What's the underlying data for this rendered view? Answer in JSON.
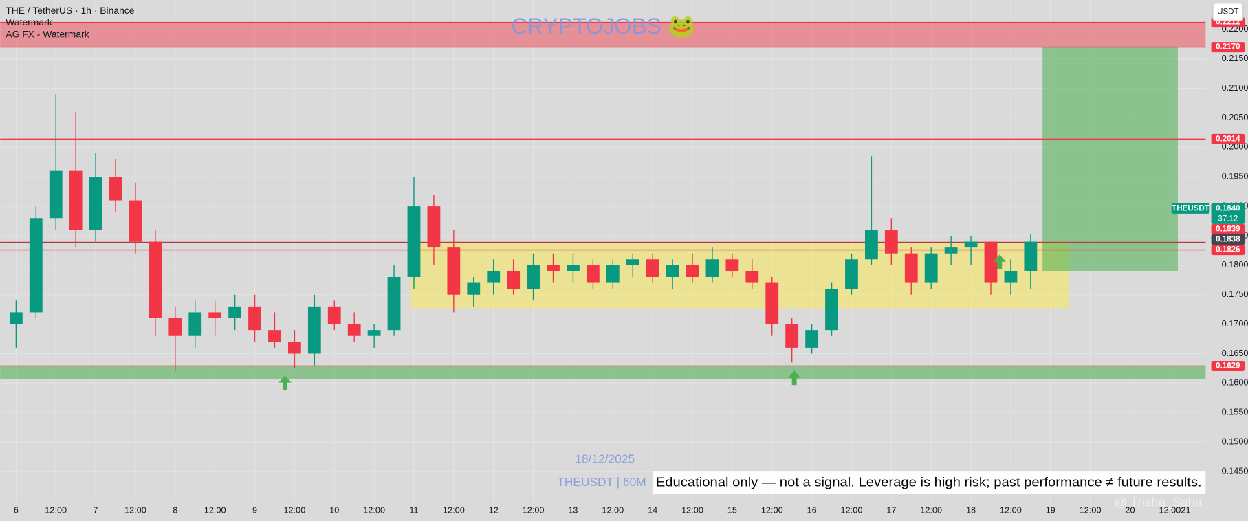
{
  "chart_data": {
    "type": "candlestick",
    "title": "THE / TetherUS · 1h · Binance",
    "indicators": [
      "Watermark",
      "AG FX - Watermark"
    ],
    "watermark": "CRYPTOJOBS 🐸",
    "currency": "USDT",
    "annotations": {
      "date": "18/12/2025",
      "symbol": "THEUSDT | 60M",
      "disclaimer": "Educational only — not a signal. Leverage is high risk; past performance ≠ future results."
    },
    "credit": "@ Trisha_Saha",
    "up_color": "#089981",
    "down_color": "#f23645",
    "x": [
      0,
      6,
      12,
      18,
      24,
      30,
      36,
      42,
      48,
      54,
      60,
      66,
      72,
      78,
      84,
      90,
      96,
      102,
      108,
      114,
      120,
      126,
      132,
      138,
      144,
      150,
      156,
      162,
      168,
      174,
      180,
      186,
      192,
      198,
      204,
      210,
      216,
      222,
      228,
      234,
      240,
      246,
      252,
      258,
      264,
      270,
      276,
      282,
      288,
      294,
      300,
      306
    ],
    "open": [
      0.17,
      0.172,
      0.188,
      0.196,
      0.186,
      0.195,
      0.191,
      0.184,
      0.171,
      0.168,
      0.172,
      0.171,
      0.173,
      0.169,
      0.167,
      0.165,
      0.173,
      0.17,
      0.168,
      0.169,
      0.178,
      0.19,
      0.183,
      0.175,
      0.177,
      0.179,
      0.176,
      0.18,
      0.179,
      0.18,
      0.177,
      0.18,
      0.181,
      0.178,
      0.18,
      0.178,
      0.181,
      0.179,
      0.177,
      0.17,
      0.166,
      0.169,
      0.176,
      0.181,
      0.186,
      0.182,
      0.177,
      0.182,
      0.183,
      0.184,
      0.177,
      0.179
    ],
    "high": [
      0.174,
      0.19,
      0.209,
      0.206,
      0.199,
      0.198,
      0.194,
      0.186,
      0.173,
      0.174,
      0.174,
      0.175,
      0.175,
      0.172,
      0.169,
      0.175,
      0.174,
      0.172,
      0.17,
      0.18,
      0.195,
      0.192,
      0.186,
      0.178,
      0.181,
      0.181,
      0.182,
      0.182,
      0.182,
      0.181,
      0.181,
      0.182,
      0.182,
      0.181,
      0.182,
      0.183,
      0.182,
      0.181,
      0.178,
      0.171,
      0.17,
      0.177,
      0.182,
      0.1985,
      0.188,
      0.183,
      0.183,
      0.185,
      0.185,
      0.184,
      0.181,
      0.1852
    ],
    "low": [
      0.166,
      0.171,
      0.186,
      0.183,
      0.184,
      0.189,
      0.182,
      0.168,
      0.162,
      0.166,
      0.168,
      0.169,
      0.167,
      0.166,
      0.1625,
      0.163,
      0.169,
      0.167,
      0.166,
      0.168,
      0.176,
      0.18,
      0.172,
      0.173,
      0.175,
      0.175,
      0.174,
      0.177,
      0.177,
      0.176,
      0.176,
      0.178,
      0.177,
      0.176,
      0.177,
      0.177,
      0.178,
      0.176,
      0.168,
      0.1635,
      0.165,
      0.168,
      0.175,
      0.18,
      0.18,
      0.175,
      0.176,
      0.18,
      0.18,
      0.175,
      0.175,
      0.176
    ],
    "close": [
      0.172,
      0.188,
      0.196,
      0.186,
      0.195,
      0.191,
      0.184,
      0.171,
      0.168,
      0.172,
      0.171,
      0.173,
      0.169,
      0.167,
      0.165,
      0.173,
      0.17,
      0.168,
      0.169,
      0.178,
      0.19,
      0.183,
      0.175,
      0.177,
      0.179,
      0.176,
      0.18,
      0.179,
      0.18,
      0.177,
      0.18,
      0.181,
      0.178,
      0.18,
      0.178,
      0.181,
      0.179,
      0.177,
      0.17,
      0.166,
      0.169,
      0.176,
      0.181,
      0.186,
      0.182,
      0.177,
      0.182,
      0.183,
      0.184,
      0.177,
      0.179,
      0.184
    ],
    "xlim": [
      -4.8,
      358.8
    ],
    "xticks": [
      {
        "value": 0,
        "label": "6"
      },
      {
        "value": 12,
        "label": "12:00"
      },
      {
        "value": 24,
        "label": "7"
      },
      {
        "value": 36,
        "label": "12:00"
      },
      {
        "value": 48,
        "label": "8"
      },
      {
        "value": 60,
        "label": "12:00"
      },
      {
        "value": 72,
        "label": "9"
      },
      {
        "value": 84,
        "label": "12:00"
      },
      {
        "value": 96,
        "label": "10"
      },
      {
        "value": 108,
        "label": "12:00"
      },
      {
        "value": 120,
        "label": "11"
      },
      {
        "value": 132,
        "label": "12:00"
      },
      {
        "value": 144,
        "label": "12"
      },
      {
        "value": 156,
        "label": "12:00"
      },
      {
        "value": 168,
        "label": "13"
      },
      {
        "value": 180,
        "label": "12:00"
      },
      {
        "value": 192,
        "label": "14"
      },
      {
        "value": 204,
        "label": "12:00"
      },
      {
        "value": 216,
        "label": "15"
      },
      {
        "value": 228,
        "label": "12:00"
      },
      {
        "value": 240,
        "label": "16"
      },
      {
        "value": 252,
        "label": "12:00"
      },
      {
        "value": 264,
        "label": "17"
      },
      {
        "value": 276,
        "label": "12:00"
      },
      {
        "value": 288,
        "label": "18"
      },
      {
        "value": 300,
        "label": "12:00"
      },
      {
        "value": 312,
        "label": "19"
      },
      {
        "value": 324,
        "label": "12:00"
      },
      {
        "value": 336,
        "label": "20"
      },
      {
        "value": 348,
        "label": "12:00"
      },
      {
        "value": 360,
        "label": "21"
      }
    ],
    "ylim": [
      0.1397,
      0.225
    ],
    "yticks": [
      {
        "value": 0.145,
        "label": "0.1450"
      },
      {
        "value": 0.15,
        "label": "0.1500"
      },
      {
        "value": 0.155,
        "label": "0.1550"
      },
      {
        "value": 0.16,
        "label": "0.1600"
      },
      {
        "value": 0.165,
        "label": "0.1650"
      },
      {
        "value": 0.17,
        "label": "0.1700"
      },
      {
        "value": 0.175,
        "label": "0.1750"
      },
      {
        "value": 0.18,
        "label": "0.1800"
      },
      {
        "value": 0.185,
        "label": "0.1850"
      },
      {
        "value": 0.19,
        "label": "0.1900"
      },
      {
        "value": 0.195,
        "label": "0.1950"
      },
      {
        "value": 0.2,
        "label": "0.2000"
      },
      {
        "value": 0.205,
        "label": "0.2050"
      },
      {
        "value": 0.21,
        "label": "0.2100"
      },
      {
        "value": 0.215,
        "label": "0.2150"
      },
      {
        "value": 0.22,
        "label": "0.2200"
      }
    ],
    "grid": true,
    "zones": [
      {
        "y": [
          0.217,
          0.2212
        ],
        "color": "rgba(242,54,69,0.45)"
      },
      {
        "y": [
          0.1607,
          0.1629
        ],
        "color": "rgba(76,175,80,0.55)"
      },
      {
        "x": [
          118.8,
          317.5
        ],
        "y": [
          0.1727,
          0.1839
        ],
        "color": "rgba(255,235,59,0.45)"
      },
      {
        "x": [
          309.6,
          350.4
        ],
        "y": [
          0.179,
          0.217
        ],
        "color": "rgba(76,175,80,0.55)"
      }
    ],
    "levels": [
      {
        "value": 0.2212,
        "label": "0.2212",
        "color": "#f23645"
      },
      {
        "value": 0.217,
        "label": "0.2170",
        "color": "#f23645"
      },
      {
        "value": 0.2014,
        "label": "0.2014",
        "color": "#f23645"
      },
      {
        "value": 0.1839,
        "label": "0.1839",
        "color": "#f23645"
      },
      {
        "value": 0.1838,
        "label": "0.1838",
        "color": "#434651"
      },
      {
        "value": 0.1826,
        "label": "0.1826",
        "color": "#f23645"
      },
      {
        "value": 0.1629,
        "label": "0.1629",
        "color": "#f23645"
      }
    ],
    "last_price": {
      "name": "THEUSDT",
      "value": 0.184,
      "label": "0.1840",
      "countdown": "37:12",
      "color": "#089981"
    }
  }
}
